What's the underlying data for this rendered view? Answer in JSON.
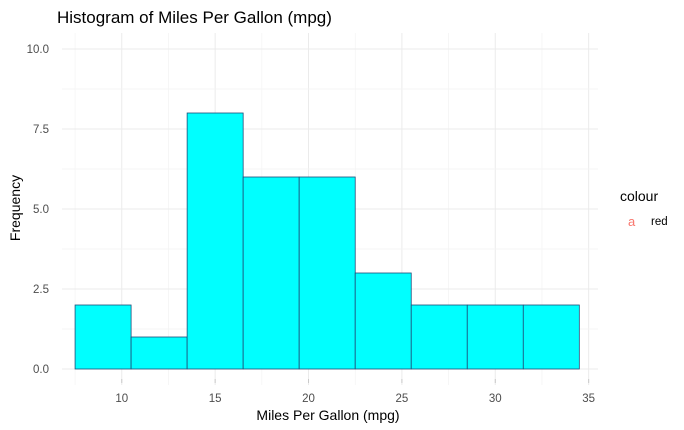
{
  "chart_data": {
    "type": "bar",
    "title": "Histogram of Miles Per Gallon (mpg)",
    "xlabel": "Miles Per Gallon (mpg)",
    "ylabel": "Frequency",
    "bins": [
      {
        "start": 7.5,
        "end": 10.5,
        "count": 2
      },
      {
        "start": 10.5,
        "end": 13.5,
        "count": 1
      },
      {
        "start": 13.5,
        "end": 16.5,
        "count": 8
      },
      {
        "start": 16.5,
        "end": 19.5,
        "count": 6
      },
      {
        "start": 19.5,
        "end": 22.5,
        "count": 6
      },
      {
        "start": 22.5,
        "end": 25.5,
        "count": 3
      },
      {
        "start": 25.5,
        "end": 28.5,
        "count": 2
      },
      {
        "start": 28.5,
        "end": 31.5,
        "count": 2
      },
      {
        "start": 31.5,
        "end": 34.5,
        "count": 2
      }
    ],
    "xlim": [
      6.8,
      35.5
    ],
    "ylim": [
      -0.5,
      10.5
    ],
    "xticks": [
      10,
      15,
      20,
      25,
      30,
      35
    ],
    "xtick_labels": [
      "10",
      "15",
      "20",
      "25",
      "30",
      "35"
    ],
    "yticks": [
      0,
      2.5,
      5,
      7.5,
      10
    ],
    "ytick_labels": [
      "0.0",
      "2.5",
      "5.0",
      "7.5",
      "10.0"
    ],
    "grid": true,
    "bar_fill": "#00ffff",
    "bar_edge": "#1f4e79",
    "legend": {
      "title": "colour",
      "placement": "right",
      "key_glyph": "a",
      "key_color": "#f8766d",
      "entries": [
        "red"
      ]
    }
  }
}
